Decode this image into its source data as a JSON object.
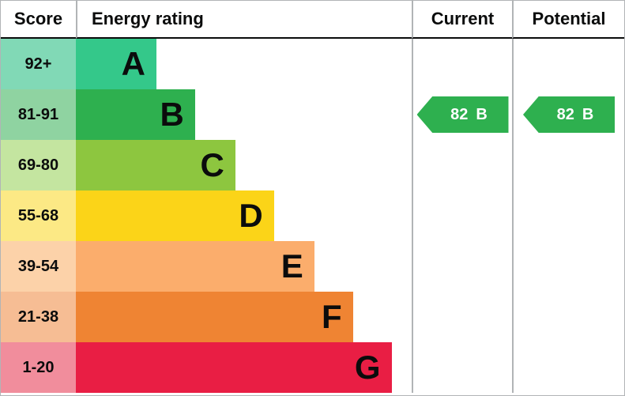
{
  "header": {
    "score": "Score",
    "energy_rating": "Energy rating",
    "current": "Current",
    "potential": "Potential"
  },
  "chart_data": {
    "type": "bar",
    "subtype": "epc-energy-rating",
    "title": "Energy rating",
    "categories": [
      "A",
      "B",
      "C",
      "D",
      "E",
      "F",
      "G"
    ],
    "bands": [
      {
        "score_range": "92+",
        "letter": "A",
        "bar_color": "#34c88a",
        "tint_color": "#81d9b6",
        "bar_width_pct": 24
      },
      {
        "score_range": "81-91",
        "letter": "B",
        "bar_color": "#2eb04f",
        "tint_color": "#8fd3a1",
        "bar_width_pct": 35.5
      },
      {
        "score_range": "69-80",
        "letter": "C",
        "bar_color": "#8dc63f",
        "tint_color": "#c4e5a0",
        "bar_width_pct": 47.5
      },
      {
        "score_range": "55-68",
        "letter": "D",
        "bar_color": "#fbd418",
        "tint_color": "#fce985",
        "bar_width_pct": 59
      },
      {
        "score_range": "39-54",
        "letter": "E",
        "bar_color": "#fbad6c",
        "tint_color": "#fcd2a9",
        "bar_width_pct": 71
      },
      {
        "score_range": "21-38",
        "letter": "F",
        "bar_color": "#ef8433",
        "tint_color": "#f6bd94",
        "bar_width_pct": 82.5
      },
      {
        "score_range": "1-20",
        "letter": "G",
        "bar_color": "#e91e44",
        "tint_color": "#f18d9c",
        "bar_width_pct": 94
      }
    ],
    "current": {
      "value": 82,
      "letter": "B",
      "band_index": 1,
      "arrow_color": "#2eb04f"
    },
    "potential": {
      "value": 82,
      "letter": "B",
      "band_index": 1,
      "arrow_color": "#2eb04f"
    }
  }
}
